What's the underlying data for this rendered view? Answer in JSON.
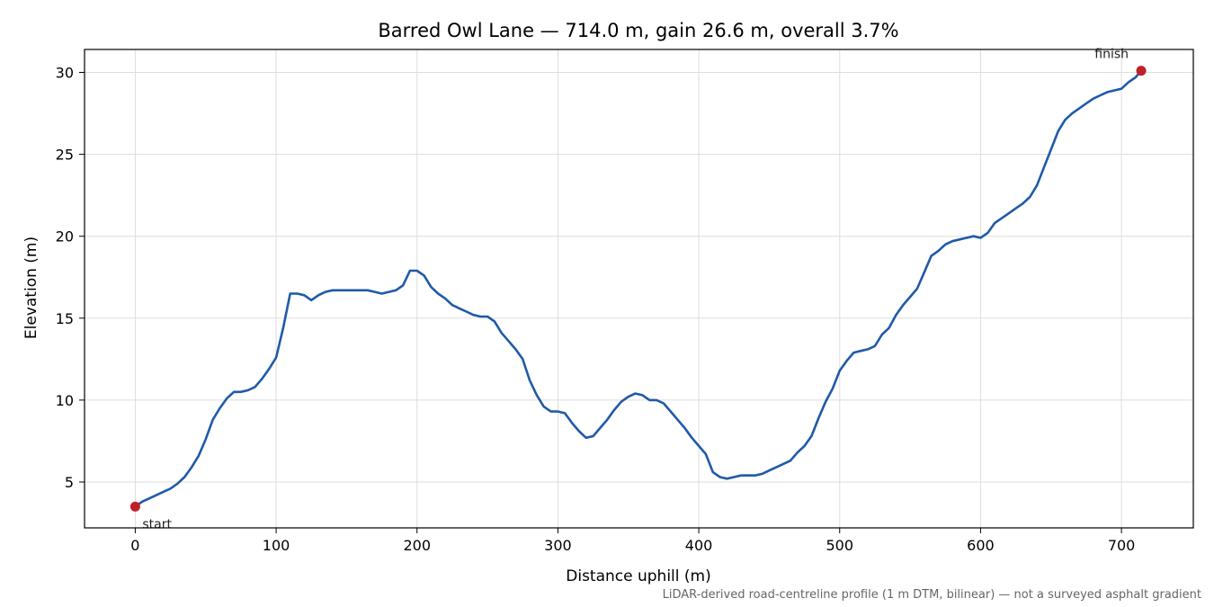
{
  "chart_data": {
    "type": "line",
    "title": "Barred Owl Lane — 714.0 m, gain 26.6 m, overall 3.7%",
    "xlabel": "Distance uphill (m)",
    "ylabel": "Elevation (m)",
    "xlim": [
      -36,
      751
    ],
    "ylim": [
      2.2,
      31.4
    ],
    "xticks": [
      0,
      100,
      200,
      300,
      400,
      500,
      600,
      700
    ],
    "yticks": [
      5,
      10,
      15,
      20,
      25,
      30
    ],
    "grid": true,
    "line_color": "#1f5aa8",
    "marker_color": "#c0202a",
    "series": [
      {
        "x": [
          0,
          5,
          10,
          15,
          20,
          25,
          30,
          35,
          40,
          45,
          50,
          55,
          60,
          65,
          70,
          75,
          80,
          85,
          90,
          95,
          100,
          105,
          110,
          115,
          120,
          125,
          130,
          135,
          140,
          145,
          150,
          155,
          160,
          165,
          170,
          175,
          180,
          185,
          190,
          195,
          200,
          205,
          210,
          215,
          220,
          225,
          230,
          235,
          240,
          245,
          250,
          255,
          260,
          265,
          270,
          275,
          280,
          285,
          290,
          295,
          300,
          305,
          310,
          315,
          320,
          325,
          330,
          335,
          340,
          345,
          350,
          355,
          360,
          365,
          370,
          375,
          380,
          385,
          390,
          395,
          400,
          405,
          410,
          415,
          420,
          425,
          430,
          435,
          440,
          445,
          450,
          455,
          460,
          465,
          470,
          475,
          480,
          485,
          490,
          495,
          500,
          505,
          510,
          515,
          520,
          525,
          530,
          535,
          540,
          545,
          550,
          555,
          560,
          565,
          570,
          575,
          580,
          585,
          590,
          595,
          600,
          605,
          610,
          615,
          620,
          625,
          630,
          635,
          640,
          645,
          650,
          655,
          660,
          665,
          670,
          675,
          680,
          685,
          690,
          695,
          700,
          705,
          710,
          714
        ],
        "y": [
          3.5,
          3.8,
          4.0,
          4.2,
          4.4,
          4.6,
          4.9,
          5.3,
          5.9,
          6.6,
          7.6,
          8.8,
          9.5,
          10.1,
          10.5,
          10.5,
          10.6,
          10.8,
          11.3,
          11.9,
          12.6,
          14.4,
          16.5,
          16.5,
          16.4,
          16.1,
          16.4,
          16.6,
          16.7,
          16.7,
          16.7,
          16.7,
          16.7,
          16.7,
          16.6,
          16.5,
          16.6,
          16.7,
          17.0,
          17.9,
          17.9,
          17.6,
          16.9,
          16.5,
          16.2,
          15.8,
          15.6,
          15.4,
          15.2,
          15.1,
          15.1,
          14.8,
          14.1,
          13.6,
          13.1,
          12.5,
          11.2,
          10.3,
          9.6,
          9.3,
          9.3,
          9.2,
          8.6,
          8.1,
          7.7,
          7.8,
          8.3,
          8.8,
          9.4,
          9.9,
          10.2,
          10.4,
          10.3,
          10.0,
          10.0,
          9.8,
          9.3,
          8.8,
          8.3,
          7.7,
          7.2,
          6.7,
          5.6,
          5.3,
          5.2,
          5.3,
          5.4,
          5.4,
          5.4,
          5.5,
          5.7,
          5.9,
          6.1,
          6.3,
          6.8,
          7.2,
          7.8,
          8.9,
          9.9,
          10.7,
          11.8,
          12.4,
          12.9,
          13.0,
          13.1,
          13.3,
          14.0,
          14.4,
          15.2,
          15.8,
          16.3,
          16.8,
          17.8,
          18.8,
          19.1,
          19.5,
          19.7,
          19.8,
          19.9,
          20.0,
          19.9,
          20.2,
          20.8,
          21.1,
          21.4,
          21.7,
          22.0,
          22.4,
          23.1,
          24.2,
          25.3,
          26.4,
          27.1,
          27.5,
          27.8,
          28.1,
          28.4,
          28.6,
          28.8,
          28.9,
          29.0,
          29.4,
          29.7,
          30.1
        ]
      }
    ],
    "annotations": [
      {
        "label": "start",
        "x": 0,
        "y": 3.5
      },
      {
        "label": "finish",
        "x": 714,
        "y": 30.1
      }
    ],
    "footnote": "LiDAR-derived road-centreline profile (1 m DTM, bilinear) — not a surveyed asphalt gradient"
  }
}
